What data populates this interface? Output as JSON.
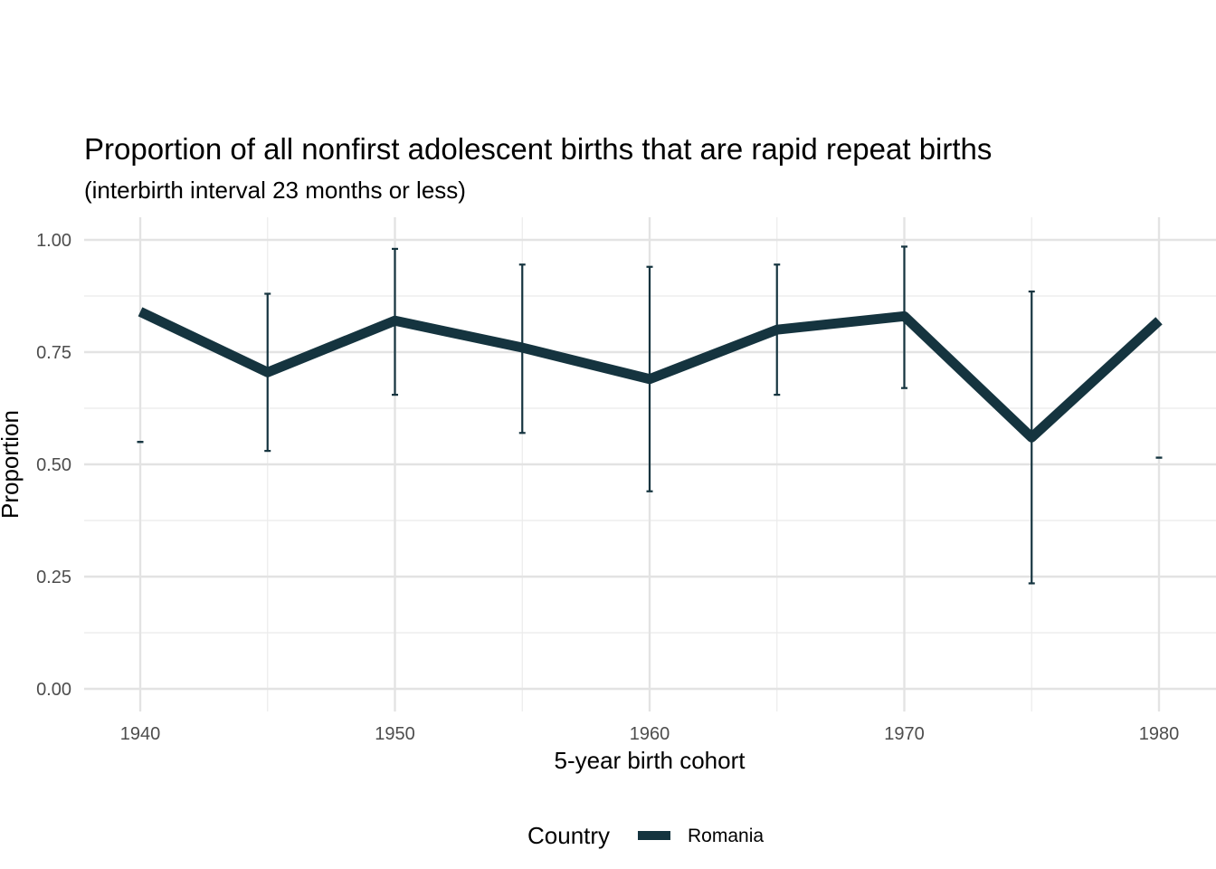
{
  "chart_data": {
    "type": "line",
    "title": "Proportion of all nonfirst adolescent births that are rapid repeat births",
    "subtitle": "(interbirth interval 23 months or less)",
    "xlabel": "5-year birth cohort",
    "ylabel": "Proportion",
    "x_ticks": [
      "1940",
      "1950",
      "1960",
      "1970",
      "1980"
    ],
    "x_tick_values": [
      1940,
      1950,
      1960,
      1970,
      1980
    ],
    "y_ticks": [
      "0.00",
      "0.25",
      "0.50",
      "0.75",
      "1.00"
    ],
    "y_tick_values": [
      0,
      0.25,
      0.5,
      0.75,
      1.0
    ],
    "xlim": [
      1937.8,
      1982.2
    ],
    "ylim": [
      -0.05,
      1.05
    ],
    "grid": true,
    "legend": {
      "title": "Country",
      "placement": "bottom",
      "entries": [
        "Romania"
      ]
    },
    "series": [
      {
        "name": "Romania",
        "color": "#15343f",
        "x": [
          1940,
          1945,
          1950,
          1955,
          1960,
          1965,
          1970,
          1975,
          1980
        ],
        "y": [
          0.84,
          0.705,
          0.82,
          0.76,
          0.69,
          0.8,
          0.83,
          0.56,
          0.82
        ],
        "ci_low": [
          0.55,
          0.53,
          0.655,
          0.57,
          0.44,
          0.655,
          0.67,
          0.235,
          0.515
        ],
        "ci_high": [
          0.55,
          0.88,
          0.98,
          0.945,
          0.94,
          0.945,
          0.985,
          0.885,
          0.515
        ]
      }
    ]
  }
}
